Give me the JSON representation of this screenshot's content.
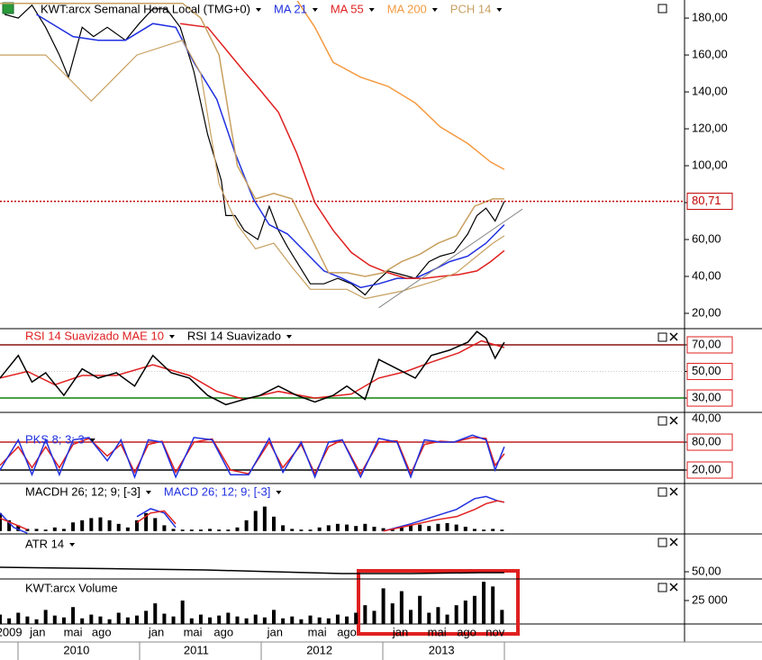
{
  "chart_data": [
    {
      "type": "line",
      "title": "KWT:arcx Semanal Hora Local (TMG+0)",
      "xlim": [
        0,
        300
      ],
      "ylim": [
        11.7,
        189.8
      ],
      "yticks": [
        {
          "value": 20,
          "label": "20,00"
        },
        {
          "value": 40,
          "label": "40,00"
        },
        {
          "value": 60,
          "label": "60,00"
        },
        {
          "value": 80,
          "label": "80,00"
        },
        {
          "value": 100,
          "label": "100,00"
        },
        {
          "value": 120,
          "label": "120,00"
        },
        {
          "value": 140,
          "label": "140,00"
        },
        {
          "value": 160,
          "label": "160,00"
        },
        {
          "value": 180,
          "label": "180,00"
        }
      ],
      "last_price": {
        "value": 80.71,
        "label": "80,71",
        "color": "#c00000"
      },
      "trendline": {
        "color": "#888888",
        "x": [
          166,
          229
        ],
        "values": [
          23,
          76.5
        ]
      },
      "series": [
        {
          "color": "#000000",
          "x": [
            2,
            8,
            14,
            20,
            26,
            30,
            36,
            41,
            47,
            55,
            61,
            67,
            73,
            79,
            85,
            91,
            97,
            99,
            103,
            107,
            113,
            118,
            122,
            126,
            130,
            136,
            142,
            148,
            154,
            160,
            164,
            170,
            176,
            182,
            188,
            193,
            199,
            205,
            209,
            213,
            217,
            221
          ],
          "values": [
            182,
            180,
            187,
            175,
            160,
            148,
            175,
            170,
            175,
            168,
            177,
            185,
            185,
            175,
            151,
            117,
            92,
            73,
            73,
            65,
            60,
            78,
            65,
            56,
            48,
            36,
            36,
            39,
            36,
            30,
            36,
            43,
            41,
            39,
            48,
            51,
            53,
            63,
            73,
            77,
            70,
            80.71
          ]
        },
        {
          "name": "MA 21",
          "color": "#1f2fe0",
          "x": [
            16,
            32,
            43,
            55,
            67,
            77,
            85,
            95,
            103,
            111,
            118,
            126,
            134,
            142,
            150,
            158,
            166,
            174,
            182,
            189,
            197,
            205,
            213,
            221
          ],
          "values": [
            182,
            170,
            168,
            168,
            177,
            175,
            156,
            136,
            107,
            82,
            68,
            63,
            53,
            43,
            39,
            34,
            36,
            39,
            39,
            43,
            48,
            51,
            58,
            68
          ]
        },
        {
          "name": "MA 55",
          "color": "#e02020",
          "x": [
            79,
            91,
            99,
            107,
            114,
            122,
            130,
            138,
            146,
            154,
            162,
            170,
            178,
            186,
            193,
            201,
            209,
            215,
            221
          ],
          "values": [
            177,
            175,
            163,
            151,
            141,
            129,
            107,
            80,
            65,
            53,
            46,
            42,
            39,
            39,
            40,
            41,
            43,
            48,
            54
          ]
        },
        {
          "name": "MA 200",
          "color": "#f59a40",
          "x": [
            130,
            138,
            146,
            158,
            170,
            182,
            193,
            205,
            215,
            221
          ],
          "values": [
            190,
            175,
            156,
            148,
            143,
            134,
            121,
            112,
            102,
            98
          ]
        },
        {
          "name": "PCH 14",
          "color": "#c8a060",
          "x": [
            0,
            20,
            40,
            60,
            80,
            88,
            96,
            104,
            112,
            120,
            128,
            136,
            144,
            152,
            160,
            168,
            176,
            184,
            192,
            200,
            208,
            216,
            221
          ],
          "values": [
            188,
            188,
            188,
            188,
            188,
            180,
            160,
            100,
            82,
            85,
            82,
            62,
            42,
            42,
            40,
            42,
            48,
            52,
            58,
            62,
            78,
            82,
            82
          ],
          "lower": [
            160,
            160,
            135,
            160,
            168,
            150,
            90,
            68,
            55,
            58,
            45,
            33,
            33,
            33,
            28,
            30,
            32,
            35,
            38,
            42,
            50,
            58,
            62
          ]
        }
      ]
    },
    {
      "type": "line",
      "xlim": [
        0,
        300
      ],
      "ylim": [
        19.2,
        82.2
      ],
      "boxed_ticks": true,
      "clipped_tick_label": "40,00",
      "yticks": [
        {
          "value": 70,
          "label": "70,00"
        },
        {
          "value": 50,
          "label": "50,00"
        },
        {
          "value": 30,
          "label": "30,00"
        }
      ],
      "levels": [
        {
          "value": 70,
          "color": "#8b1010"
        },
        {
          "value": 50,
          "color": "#cccccc"
        },
        {
          "value": 30,
          "color": "#108010"
        }
      ],
      "series": [
        {
          "name": "RSI 14 Suavizado MAE 10",
          "color": "#e02020",
          "x": [
            0,
            12,
            24,
            36,
            51,
            67,
            83,
            95,
            107,
            122,
            138,
            154,
            166,
            178,
            189,
            201,
            211,
            221
          ],
          "values": [
            45,
            50,
            40,
            47,
            47,
            55,
            47,
            35,
            29,
            35,
            30,
            33,
            45,
            50,
            57,
            64,
            73,
            68
          ]
        },
        {
          "name": "RSI 14 Suavizado",
          "color": "#000000",
          "x": [
            0,
            8,
            14,
            20,
            28,
            36,
            43,
            51,
            59,
            67,
            75,
            83,
            91,
            99,
            107,
            114,
            122,
            130,
            138,
            146,
            152,
            160,
            166,
            174,
            182,
            189,
            197,
            205,
            209,
            213,
            217,
            221
          ],
          "values": [
            45,
            62,
            42,
            49,
            32,
            52,
            45,
            49,
            39,
            62,
            49,
            45,
            32,
            25,
            29,
            32,
            39,
            32,
            27,
            32,
            39,
            29,
            59,
            52,
            45,
            62,
            66,
            72,
            80,
            75,
            60,
            72
          ]
        }
      ]
    },
    {
      "type": "line",
      "xlim": [
        0,
        300
      ],
      "ylim": [
        -9,
        144
      ],
      "boxed_ticks": true,
      "yticks": [
        {
          "value": 80,
          "label": "80,00"
        },
        {
          "value": 20,
          "label": "20,00"
        }
      ],
      "levels": [
        {
          "value": 80,
          "color": "#c02020"
        },
        {
          "value": 20,
          "color": "#000000"
        }
      ],
      "series": [
        {
          "color": "#e02020",
          "x": [
            0,
            8,
            14,
            20,
            26,
            32,
            39,
            47,
            53,
            59,
            65,
            71,
            77,
            85,
            93,
            101,
            109,
            118,
            124,
            132,
            138,
            144,
            150,
            158,
            166,
            174,
            180,
            186,
            193,
            199,
            207,
            213,
            217,
            221
          ],
          "values": [
            30,
            70,
            25,
            70,
            25,
            75,
            88,
            50,
            75,
            15,
            75,
            82,
            15,
            80,
            87,
            20,
            12,
            80,
            25,
            75,
            12,
            70,
            85,
            12,
            80,
            83,
            12,
            75,
            82,
            80,
            90,
            88,
            30,
            55
          ]
        },
        {
          "name": "PKS 8; 3; 3",
          "color": "#2030e0",
          "x": [
            0,
            8,
            14,
            20,
            26,
            32,
            39,
            47,
            53,
            59,
            65,
            71,
            77,
            85,
            93,
            101,
            109,
            118,
            124,
            132,
            138,
            144,
            150,
            158,
            166,
            174,
            180,
            186,
            193,
            199,
            207,
            213,
            217,
            221
          ],
          "values": [
            20,
            85,
            10,
            85,
            10,
            85,
            90,
            40,
            85,
            5,
            85,
            80,
            5,
            90,
            85,
            10,
            10,
            88,
            15,
            80,
            5,
            80,
            85,
            5,
            88,
            80,
            5,
            85,
            80,
            80,
            95,
            85,
            20,
            70
          ]
        }
      ]
    },
    {
      "type": "bar-line",
      "xlim": [
        0,
        300
      ],
      "ylim": [
        -0.4,
        6.6
      ],
      "histogram": {
        "name": "MACDH 26; 12; 9; [-3]",
        "color": "#000000",
        "x": [
          0,
          4,
          8,
          12,
          16,
          20,
          24,
          28,
          32,
          36,
          40,
          44,
          48,
          52,
          56,
          60,
          64,
          68,
          72,
          76,
          80,
          84,
          88,
          92,
          96,
          100,
          104,
          108,
          112,
          116,
          120,
          124,
          128,
          132,
          136,
          140,
          144,
          148,
          152,
          156,
          160,
          164,
          168,
          172,
          176,
          180,
          184,
          188,
          192,
          196,
          200,
          204,
          208,
          212,
          216,
          220
        ],
        "values": [
          2.5,
          1.5,
          0.8,
          0.3,
          0.3,
          0.2,
          0.5,
          0.3,
          1.2,
          1.5,
          1.8,
          1.9,
          1.5,
          1.0,
          0.5,
          1.5,
          2.5,
          1.8,
          0.8,
          0.3,
          0.2,
          0.2,
          0.2,
          0.3,
          0.2,
          0.2,
          0.5,
          1.5,
          2.8,
          3.4,
          2.0,
          0.8,
          0.3,
          0.2,
          0.2,
          0.5,
          0.8,
          1.0,
          0.9,
          0.7,
          1.0,
          0.6,
          0.4,
          0.3,
          0.5,
          0.8,
          0.9,
          0.7,
          1.0,
          1.1,
          0.9,
          0.6,
          0.3,
          0.2,
          0.3,
          0.2
        ]
      },
      "series": [
        {
          "name": "MACD 26; 12; 9; [-3]",
          "color": "#2030e0",
          "x": [
            0,
            6,
            12,
            30,
            60,
            66,
            72,
            77,
            160,
            168,
            180,
            190,
            200,
            208,
            213,
            218,
            221
          ],
          "values": [
            2.5,
            0.5,
            -0.3,
            null,
            2.0,
            3.1,
            2.5,
            0.5,
            null,
            0,
            1.0,
            2.0,
            3.0,
            4.5,
            4.8,
            4.2,
            4.0
          ]
        },
        {
          "color": "#e02020",
          "x": [
            0,
            6,
            12,
            30,
            60,
            66,
            72,
            77,
            160,
            168,
            180,
            190,
            200,
            208,
            213,
            218,
            221
          ],
          "values": [
            1.8,
            1.0,
            0.2,
            null,
            1.2,
            2.5,
            2.8,
            1.0,
            null,
            0,
            0.8,
            1.5,
            2.0,
            3.0,
            3.8,
            4.2,
            4.0
          ]
        }
      ]
    },
    {
      "type": "line",
      "xlim": [
        0,
        300
      ],
      "ylim": [
        42,
        92
      ],
      "yticks": [
        {
          "value": 50,
          "label": "50,00"
        }
      ],
      "series": [
        {
          "name": "ATR 14",
          "color": "#000000",
          "x": [
            0,
            30,
            60,
            90,
            120,
            150,
            180,
            210,
            221
          ],
          "values": [
            55,
            54,
            53,
            52,
            50,
            48,
            48,
            49,
            49
          ]
        }
      ]
    },
    {
      "type": "bar",
      "xlim": [
        0,
        300
      ],
      "ylim": [
        0,
        48000
      ],
      "yticks": [
        {
          "value": 25000,
          "label": "25 000"
        }
      ],
      "histogram": {
        "name": "KWT:arcx Volume",
        "color": "#000000",
        "x": [
          0,
          4,
          8,
          12,
          16,
          20,
          24,
          28,
          32,
          36,
          40,
          44,
          48,
          52,
          56,
          60,
          64,
          68,
          72,
          76,
          80,
          84,
          88,
          92,
          96,
          100,
          104,
          108,
          112,
          116,
          120,
          124,
          128,
          132,
          136,
          140,
          144,
          148,
          152,
          156,
          160,
          164,
          168,
          172,
          176,
          180,
          184,
          188,
          192,
          196,
          200,
          204,
          208,
          212,
          216,
          220
        ],
        "values": [
          10000,
          6000,
          12000,
          8000,
          5000,
          15000,
          9000,
          7000,
          18000,
          6000,
          10000,
          8000,
          5000,
          12000,
          7000,
          9000,
          14000,
          22000,
          11000,
          8000,
          25000,
          6000,
          10000,
          7000,
          9000,
          12000,
          8000,
          6000,
          10000,
          7000,
          15000,
          6000,
          8000,
          5000,
          9000,
          7000,
          6000,
          10000,
          8000,
          12000,
          20000,
          14000,
          38000,
          22000,
          35000,
          15000,
          30000,
          12000,
          18000,
          10000,
          20000,
          25000,
          30000,
          45000,
          40000,
          15000
        ]
      },
      "xticks": [
        {
          "value": 4,
          "label": "2009"
        },
        {
          "value": 16.5,
          "label": "jan"
        },
        {
          "value": 32,
          "label": "mai"
        },
        {
          "value": 44.5,
          "label": "ago"
        },
        {
          "value": 68.5,
          "label": "jan"
        },
        {
          "value": 84.5,
          "label": "mai"
        },
        {
          "value": 98,
          "label": "ago"
        },
        {
          "value": 120.5,
          "label": "jan"
        },
        {
          "value": 139,
          "label": "mai"
        },
        {
          "value": 152,
          "label": "ago"
        },
        {
          "value": 175.5,
          "label": "jan"
        },
        {
          "value": 191.5,
          "label": "mai"
        },
        {
          "value": 204.5,
          "label": "ago"
        },
        {
          "value": 217,
          "label": "nov"
        }
      ],
      "year_ticks": [
        {
          "value": 33.5,
          "label": "2010"
        },
        {
          "value": 86,
          "label": "2011"
        },
        {
          "value": 140,
          "label": "2012"
        },
        {
          "value": 193.5,
          "label": "2013"
        }
      ]
    }
  ]
}
